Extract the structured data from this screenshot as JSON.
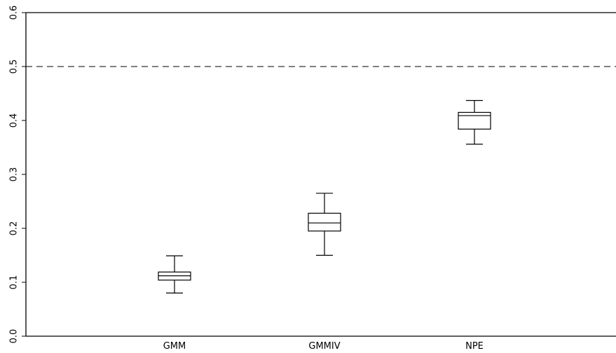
{
  "chart_data": {
    "type": "box",
    "title": "",
    "xlabel": "",
    "ylabel": "",
    "ylim": [
      0.0,
      0.6
    ],
    "yticks": [
      "0.0",
      "0.1",
      "0.2",
      "0.3",
      "0.4",
      "0.5",
      "0.6"
    ],
    "categories": [
      "GMM",
      "GMMIV",
      "NPE"
    ],
    "boxes": [
      {
        "label": "GMM",
        "whisker_low": 0.08,
        "q1": 0.104,
        "median": 0.112,
        "q3": 0.119,
        "whisker_high": 0.149
      },
      {
        "label": "GMMIV",
        "whisker_low": 0.15,
        "q1": 0.195,
        "median": 0.21,
        "q3": 0.228,
        "whisker_high": 0.265
      },
      {
        "label": "NPE",
        "whisker_low": 0.356,
        "q1": 0.384,
        "median": 0.409,
        "q3": 0.415,
        "whisker_high": 0.437
      }
    ],
    "reference_line": {
      "y": 0.5,
      "style": "dashed"
    },
    "grid": false
  }
}
